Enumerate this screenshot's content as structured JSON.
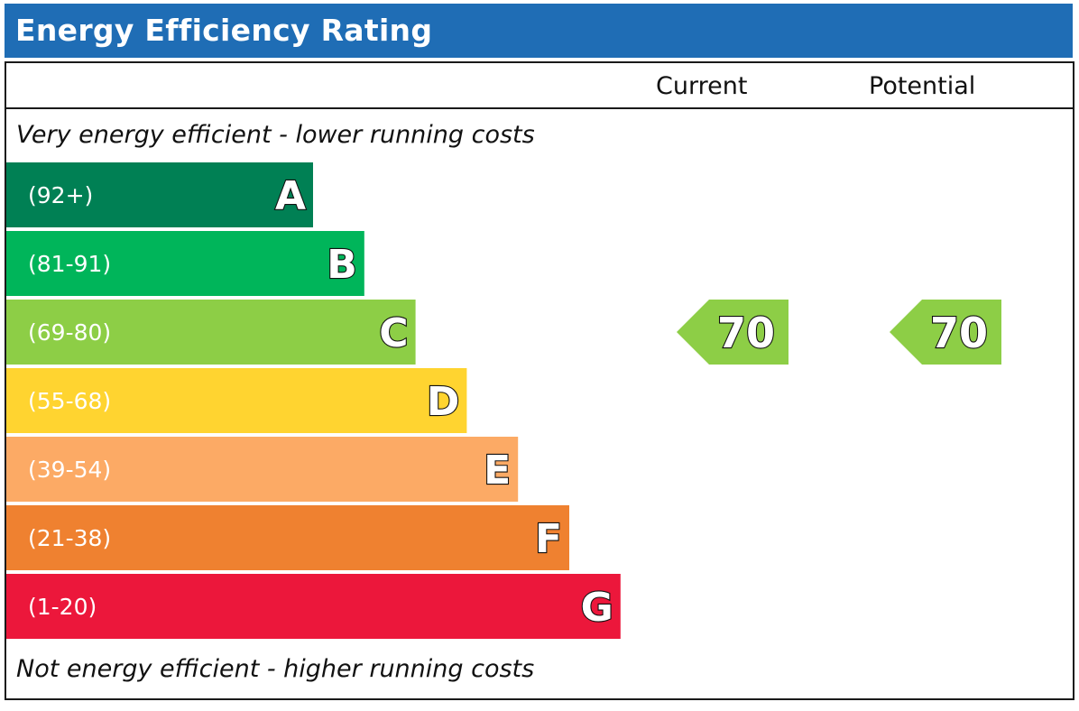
{
  "title": "Energy Efficiency Rating",
  "columns": {
    "current": "Current",
    "potential": "Potential"
  },
  "captions": {
    "top": "Very energy efficient - lower running costs",
    "bottom": "Not energy efficient - higher running costs"
  },
  "chart_data": {
    "type": "bar",
    "categories": [
      "A",
      "B",
      "C",
      "D",
      "E",
      "F",
      "G"
    ],
    "ranges": [
      "(92+)",
      "(81-91)",
      "(69-80)",
      "(55-68)",
      "(39-54)",
      "(21-38)",
      "(1-20)"
    ],
    "band_min": [
      92,
      81,
      69,
      55,
      39,
      21,
      1
    ],
    "colors": [
      "#008054",
      "#00b55a",
      "#8dce46",
      "#ffd430",
      "#fcaa65",
      "#ef8130",
      "#ec173b"
    ],
    "current": {
      "value": 70,
      "band": "C",
      "color": "#8dce46"
    },
    "potential": {
      "value": 70,
      "band": "C",
      "color": "#8dce46"
    }
  }
}
